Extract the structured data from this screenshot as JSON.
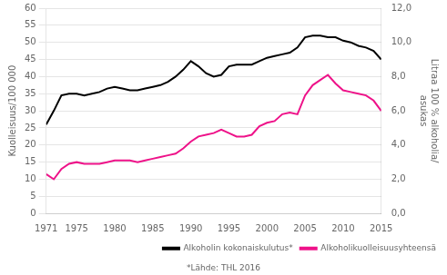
{
  "chart_data": {
    "type": "line",
    "x": [
      1971,
      1972,
      1973,
      1974,
      1975,
      1976,
      1977,
      1978,
      1979,
      1980,
      1981,
      1982,
      1983,
      1984,
      1985,
      1986,
      1987,
      1988,
      1989,
      1990,
      1991,
      1992,
      1993,
      1994,
      1995,
      1996,
      1997,
      1998,
      1999,
      2000,
      2001,
      2002,
      2003,
      2004,
      2005,
      2006,
      2007,
      2008,
      2009,
      2010,
      2011,
      2012,
      2013,
      2014,
      2015
    ],
    "series": [
      {
        "name": "Alkoholin kokonaiskulutus*",
        "color": "#000000",
        "values": [
          26.0,
          30.0,
          34.5,
          35.0,
          35.0,
          34.5,
          35.0,
          35.5,
          36.5,
          37.0,
          36.5,
          36.0,
          36.0,
          36.5,
          37.0,
          37.5,
          38.5,
          40.0,
          42.0,
          44.5,
          43.0,
          41.0,
          40.0,
          40.5,
          43.0,
          43.5,
          43.5,
          43.5,
          44.5,
          45.5,
          46.0,
          46.5,
          47.0,
          48.5,
          51.5,
          52.0,
          52.0,
          51.5,
          51.5,
          50.5,
          50.0,
          49.0,
          48.5,
          47.5,
          45.0
        ]
      },
      {
        "name": "Alkoholikuolleisuusyhteensä",
        "color": "#EE1289",
        "values": [
          11.5,
          10.0,
          13.0,
          14.5,
          15.0,
          14.5,
          14.5,
          14.5,
          15.0,
          15.5,
          15.5,
          15.5,
          15.0,
          15.5,
          16.0,
          16.5,
          17.0,
          17.5,
          19.0,
          21.0,
          22.5,
          23.0,
          23.5,
          24.5,
          23.5,
          22.5,
          22.5,
          23.0,
          25.5,
          26.5,
          27.0,
          29.0,
          29.5,
          29.0,
          34.5,
          37.5,
          39.0,
          40.5,
          38.0,
          36.0,
          35.5,
          35.0,
          34.5,
          33.0,
          30.0
        ]
      }
    ],
    "xlim": [
      1971,
      2015
    ],
    "xticks": [
      1971,
      1975,
      1980,
      1985,
      1990,
      1995,
      2000,
      2005,
      2010,
      2015
    ],
    "ylim": [
      0,
      60
    ],
    "yticks": [
      0,
      5,
      10,
      15,
      20,
      25,
      30,
      35,
      40,
      45,
      50,
      55,
      60
    ],
    "y2lim": [
      0,
      12
    ],
    "y2ticks": [
      {
        "value": 0,
        "label": "0,0"
      },
      {
        "value": 2,
        "label": "2,0"
      },
      {
        "value": 4,
        "label": "4,0"
      },
      {
        "value": 6,
        "label": "6,0"
      },
      {
        "value": 8,
        "label": "8,0"
      },
      {
        "value": 10,
        "label": "10,0"
      },
      {
        "value": 12,
        "label": "12,0"
      }
    ],
    "ylabel": "Kuolleisuus/100 000",
    "y2label": "Litraa 100 % alkoholia/\nasukas",
    "annotations": [
      "*Lähde: THL 2016"
    ],
    "grid": "y",
    "legend": "lower right"
  }
}
